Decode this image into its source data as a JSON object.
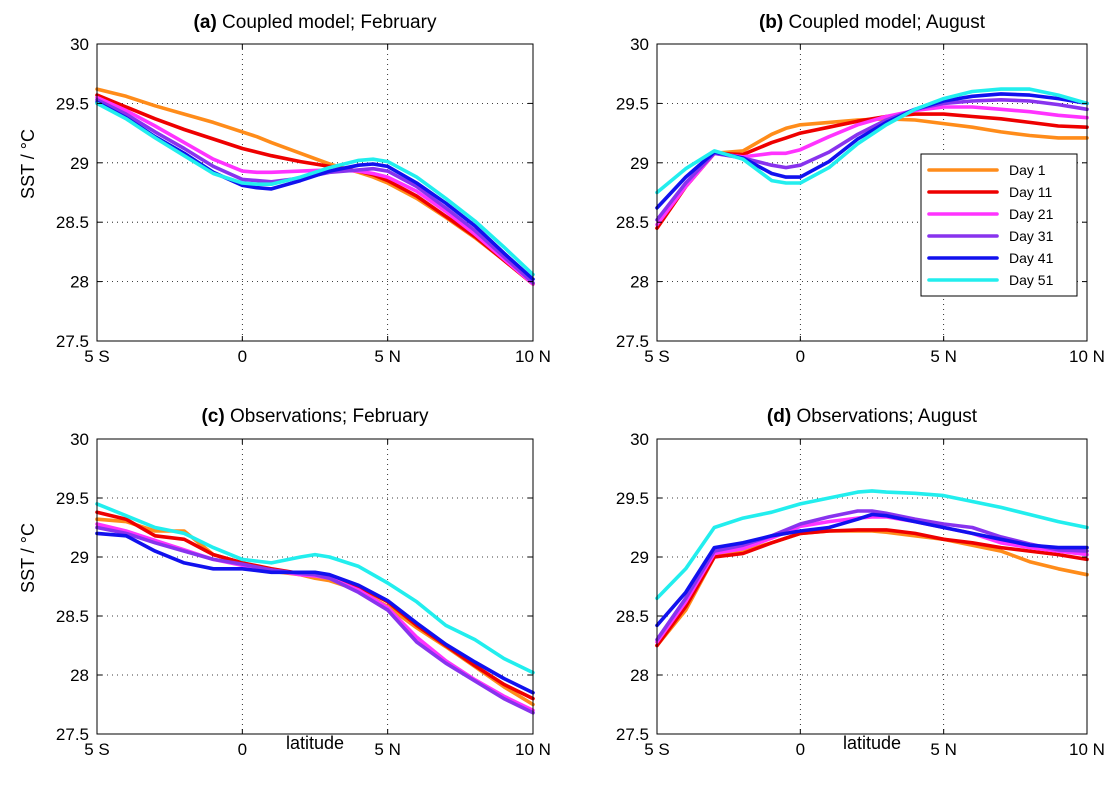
{
  "series_styles": [
    {
      "name": "Day 1",
      "color": "#FF8C1A"
    },
    {
      "name": "Day 11",
      "color": "#EE0000"
    },
    {
      "name": "Day 21",
      "color": "#FF33FF"
    },
    {
      "name": "Day 31",
      "color": "#8833EE"
    },
    {
      "name": "Day 41",
      "color": "#1111EE"
    },
    {
      "name": "Day 51",
      "color": "#22EEEE"
    }
  ],
  "chart_data": [
    {
      "type": "line",
      "title_letter": "(a)",
      "title_text": " Coupled model; February",
      "xlabel": "",
      "ylabel": "SST / °C",
      "xlim": [
        -5,
        10
      ],
      "ylim": [
        27.5,
        30
      ],
      "xticks": [
        -5,
        0,
        5,
        10
      ],
      "xtick_labels": [
        "5 S",
        "0",
        "5 N",
        "10 N"
      ],
      "yticks": [
        27.5,
        28,
        28.5,
        29,
        29.5,
        30
      ],
      "ytick_labels": [
        "27.5",
        "28",
        "28.5",
        "29",
        "29.5",
        "30"
      ],
      "grid": true,
      "legend": false,
      "x": [
        -5,
        -4,
        -3,
        -2,
        -1,
        0,
        0.5,
        1,
        2,
        3,
        4,
        4.5,
        5,
        6,
        7,
        8,
        9,
        10
      ],
      "series": [
        {
          "name": "Day 1",
          "values": [
            29.62,
            29.56,
            29.48,
            29.41,
            29.34,
            29.26,
            29.22,
            29.17,
            29.08,
            28.99,
            28.92,
            28.88,
            28.83,
            28.7,
            28.54,
            28.37,
            28.18,
            27.98
          ]
        },
        {
          "name": "Day 11",
          "values": [
            29.57,
            29.47,
            29.37,
            29.28,
            29.2,
            29.12,
            29.09,
            29.06,
            29.01,
            28.97,
            28.93,
            28.9,
            28.85,
            28.72,
            28.55,
            28.38,
            28.18,
            27.98
          ]
        },
        {
          "name": "Day 21",
          "values": [
            29.55,
            29.44,
            29.31,
            29.17,
            29.03,
            28.93,
            28.92,
            28.92,
            28.93,
            28.94,
            28.93,
            28.91,
            28.88,
            28.76,
            28.59,
            28.4,
            28.19,
            27.98
          ]
        },
        {
          "name": "Day 31",
          "values": [
            29.53,
            29.41,
            29.26,
            29.12,
            28.97,
            28.86,
            28.85,
            28.84,
            28.87,
            28.92,
            28.94,
            28.95,
            28.93,
            28.8,
            28.62,
            28.43,
            28.21,
            27.99
          ]
        },
        {
          "name": "Day 41",
          "values": [
            29.51,
            29.38,
            29.22,
            29.08,
            28.92,
            28.81,
            28.79,
            28.78,
            28.85,
            28.93,
            28.98,
            28.99,
            28.97,
            28.83,
            28.66,
            28.47,
            28.24,
            28.02
          ]
        },
        {
          "name": "Day 51",
          "values": [
            29.5,
            29.37,
            29.21,
            29.06,
            28.91,
            28.83,
            28.82,
            28.82,
            28.88,
            28.96,
            29.02,
            29.03,
            29.01,
            28.88,
            28.7,
            28.51,
            28.29,
            28.06
          ]
        }
      ]
    },
    {
      "type": "line",
      "title_letter": "(b)",
      "title_text": " Coupled model; August",
      "xlabel": "",
      "ylabel": "",
      "xlim": [
        -5,
        10
      ],
      "ylim": [
        27.5,
        30
      ],
      "xticks": [
        -5,
        0,
        5,
        10
      ],
      "xtick_labels": [
        "5 S",
        "0",
        "5 N",
        "10 N"
      ],
      "yticks": [
        27.5,
        28,
        28.5,
        29,
        29.5,
        30
      ],
      "ytick_labels": [
        "27.5",
        "28",
        "28.5",
        "29",
        "29.5",
        "30"
      ],
      "grid": true,
      "legend": "top-right",
      "x": [
        -5,
        -4,
        -3,
        -2,
        -1,
        -0.5,
        0,
        1,
        2,
        3,
        4,
        5,
        6,
        7,
        8,
        9,
        10
      ],
      "series": [
        {
          "name": "Day 1",
          "values": [
            28.45,
            28.8,
            29.08,
            29.1,
            29.24,
            29.29,
            29.32,
            29.34,
            29.36,
            29.37,
            29.36,
            29.33,
            29.3,
            29.26,
            29.23,
            29.21,
            29.21
          ]
        },
        {
          "name": "Day 11",
          "values": [
            28.45,
            28.8,
            29.08,
            29.07,
            29.17,
            29.21,
            29.25,
            29.3,
            29.35,
            29.39,
            29.41,
            29.41,
            29.39,
            29.37,
            29.34,
            29.31,
            29.3
          ]
        },
        {
          "name": "Day 21",
          "values": [
            28.48,
            28.8,
            29.08,
            29.05,
            29.08,
            29.08,
            29.11,
            29.22,
            29.32,
            29.39,
            29.44,
            29.47,
            29.47,
            29.45,
            29.43,
            29.4,
            29.38
          ]
        },
        {
          "name": "Day 31",
          "values": [
            28.52,
            28.83,
            29.08,
            29.04,
            28.98,
            28.96,
            28.98,
            29.09,
            29.24,
            29.36,
            29.45,
            29.5,
            29.52,
            29.53,
            29.52,
            29.49,
            29.45
          ]
        },
        {
          "name": "Day 41",
          "values": [
            28.62,
            28.88,
            29.09,
            29.04,
            28.91,
            28.88,
            28.88,
            29.01,
            29.2,
            29.34,
            29.45,
            29.52,
            29.56,
            29.58,
            29.57,
            29.54,
            29.5
          ]
        },
        {
          "name": "Day 51",
          "values": [
            28.75,
            28.95,
            29.1,
            29.03,
            28.85,
            28.83,
            28.83,
            28.96,
            29.16,
            29.32,
            29.45,
            29.54,
            29.6,
            29.62,
            29.62,
            29.57,
            29.5
          ]
        }
      ]
    },
    {
      "type": "line",
      "title_letter": "(c)",
      "title_text": " Observations; February",
      "xlabel": "latitude",
      "ylabel": "SST / °C",
      "xlim": [
        -5,
        10
      ],
      "ylim": [
        27.5,
        30
      ],
      "xticks": [
        -5,
        0,
        5,
        10
      ],
      "xtick_labels": [
        "5 S",
        "0",
        "5 N",
        "10 N"
      ],
      "yticks": [
        27.5,
        28,
        28.5,
        29,
        29.5,
        30
      ],
      "ytick_labels": [
        "27.5",
        "28",
        "28.5",
        "29",
        "29.5",
        "30"
      ],
      "grid": true,
      "legend": false,
      "x": [
        -5,
        -4,
        -3,
        -2,
        -1,
        0,
        1,
        2,
        2.5,
        3,
        4,
        5,
        6,
        7,
        8,
        9,
        10
      ],
      "series": [
        {
          "name": "Day 1",
          "values": [
            29.32,
            29.3,
            29.22,
            29.22,
            29.02,
            28.95,
            28.88,
            28.85,
            28.82,
            28.8,
            28.72,
            28.58,
            28.4,
            28.24,
            28.07,
            27.9,
            27.75
          ]
        },
        {
          "name": "Day 11",
          "values": [
            29.38,
            29.32,
            29.18,
            29.15,
            29.02,
            28.95,
            28.9,
            28.86,
            28.85,
            28.84,
            28.75,
            28.62,
            28.42,
            28.25,
            28.08,
            27.92,
            27.8
          ]
        },
        {
          "name": "Day 21",
          "values": [
            29.28,
            29.22,
            29.14,
            29.06,
            28.98,
            28.93,
            28.89,
            28.85,
            28.84,
            28.82,
            28.72,
            28.57,
            28.32,
            28.12,
            27.96,
            27.82,
            27.7
          ]
        },
        {
          "name": "Day 31",
          "values": [
            29.25,
            29.2,
            29.12,
            29.05,
            28.98,
            28.94,
            28.89,
            28.86,
            28.85,
            28.82,
            28.7,
            28.55,
            28.28,
            28.1,
            27.95,
            27.8,
            27.68
          ]
        },
        {
          "name": "Day 41",
          "values": [
            29.2,
            29.18,
            29.05,
            28.95,
            28.9,
            28.9,
            28.87,
            28.87,
            28.87,
            28.85,
            28.76,
            28.63,
            28.44,
            28.26,
            28.11,
            27.97,
            27.85
          ]
        },
        {
          "name": "Day 51",
          "values": [
            29.45,
            29.35,
            29.25,
            29.2,
            29.08,
            28.98,
            28.95,
            29.0,
            29.02,
            29.0,
            28.92,
            28.78,
            28.62,
            28.42,
            28.3,
            28.14,
            28.02
          ]
        }
      ]
    },
    {
      "type": "line",
      "title_letter": "(d)",
      "title_text": " Observations; August",
      "xlabel": "latitude",
      "ylabel": "",
      "xlim": [
        -5,
        10
      ],
      "ylim": [
        27.5,
        30
      ],
      "xticks": [
        -5,
        0,
        5,
        10
      ],
      "xtick_labels": [
        "5 S",
        "0",
        "5 N",
        "10 N"
      ],
      "yticks": [
        27.5,
        28,
        28.5,
        29,
        29.5,
        30
      ],
      "ytick_labels": [
        "27.5",
        "28",
        "28.5",
        "29",
        "29.5",
        "30"
      ],
      "grid": true,
      "legend": false,
      "x": [
        -5,
        -4,
        -3,
        -2,
        -1,
        0,
        1,
        2,
        2.5,
        3,
        4,
        5,
        6,
        7,
        8,
        9,
        10
      ],
      "series": [
        {
          "name": "Day 1",
          "values": [
            28.25,
            28.55,
            29.0,
            29.05,
            29.12,
            29.2,
            29.22,
            29.22,
            29.22,
            29.21,
            29.18,
            29.15,
            29.1,
            29.05,
            28.96,
            28.9,
            28.85
          ]
        },
        {
          "name": "Day 11",
          "values": [
            28.25,
            28.58,
            29.0,
            29.03,
            29.12,
            29.2,
            29.22,
            29.23,
            29.23,
            29.23,
            29.2,
            29.15,
            29.12,
            29.08,
            29.05,
            29.02,
            28.98
          ]
        },
        {
          "name": "Day 21",
          "values": [
            28.28,
            28.62,
            29.03,
            29.07,
            29.16,
            29.26,
            29.3,
            29.33,
            29.34,
            29.34,
            29.3,
            29.25,
            29.2,
            29.12,
            29.08,
            29.05,
            29.02
          ]
        },
        {
          "name": "Day 31",
          "values": [
            28.3,
            28.65,
            29.05,
            29.1,
            29.18,
            29.28,
            29.34,
            29.39,
            29.39,
            29.37,
            29.32,
            29.28,
            29.25,
            29.17,
            29.11,
            29.06,
            29.05
          ]
        },
        {
          "name": "Day 41",
          "values": [
            28.42,
            28.7,
            29.08,
            29.12,
            29.18,
            29.22,
            29.25,
            29.32,
            29.36,
            29.35,
            29.3,
            29.25,
            29.2,
            29.15,
            29.1,
            29.08,
            29.08
          ]
        },
        {
          "name": "Day 51",
          "values": [
            28.65,
            28.9,
            29.25,
            29.33,
            29.38,
            29.45,
            29.5,
            29.55,
            29.56,
            29.55,
            29.54,
            29.52,
            29.47,
            29.42,
            29.36,
            29.3,
            29.25
          ]
        }
      ]
    }
  ]
}
